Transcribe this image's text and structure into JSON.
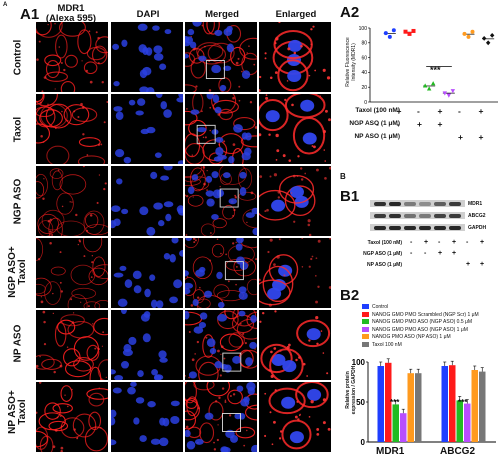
{
  "figure": {
    "corner_label": "A",
    "panel_a1": "A1",
    "panel_a2": "A2",
    "panel_b": "B",
    "panel_b1": "B1",
    "panel_b2": "B2",
    "columns": [
      "MDR1\n(Alexa 595)",
      "DAPI",
      "Merged",
      "Enlarged"
    ],
    "rows": [
      "Control",
      "Taxol",
      "NGP ASO",
      "NGP ASO+\nTaxol",
      "NP ASO",
      "NP ASO+\nTaxol"
    ]
  },
  "a2": {
    "ylabel": "Relative Fluorescence\nIntensity (MDR1)",
    "yticks": [
      "0",
      "20",
      "40",
      "60",
      "80",
      "100"
    ],
    "significance": "***",
    "conditions": [
      {
        "label": "Taxol (100 nM)",
        "marks": [
          "-",
          "+",
          "-",
          "+",
          "-",
          "+"
        ]
      },
      {
        "label": "NGP ASO (1 μM)",
        "marks": [
          "-",
          "-",
          "+",
          "+",
          "",
          ""
        ]
      },
      {
        "label": "NP ASO (1 μM)",
        "marks": [
          "",
          "",
          "",
          "",
          "+",
          "+"
        ]
      }
    ]
  },
  "b1": {
    "bands": [
      "MDR1",
      "ABCG2",
      "GAPDH"
    ],
    "conditions": [
      {
        "label": "Taxol (100 nM)",
        "marks": [
          "-",
          "+",
          "-",
          "+",
          "-",
          "+"
        ]
      },
      {
        "label": "NGP ASO (1 μM)",
        "marks": [
          "-",
          "-",
          "+",
          "+",
          "",
          ""
        ]
      },
      {
        "label": "NP ASO (1 μM)",
        "marks": [
          "",
          "",
          "",
          "",
          "+",
          "+"
        ]
      }
    ]
  },
  "b2": {
    "legend": [
      {
        "label": "Control",
        "color": "#1f3fff"
      },
      {
        "label": "NANOG GMO PMO Scrambled  (NGP Scr) 1 μM",
        "color": "#ff1a1a"
      },
      {
        "label": "NANOG GMO PMO ASO  (NGP ASO) 0.5 μM",
        "color": "#22bb22"
      },
      {
        "label": "NANOG GMO PMO ASO  (NGP ASO) 1 μM",
        "color": "#b84dff"
      },
      {
        "label": "NANOG PMO ASO  (NP ASO) 1 μM",
        "color": "#ff9a1f"
      },
      {
        "label": "Taxol 100 nM",
        "color": "#777777"
      }
    ],
    "ylabel": "Relative protein\nexpression / GAPDH",
    "yticks": [
      "0",
      "50",
      "100"
    ],
    "groups": [
      "MDR1",
      "ABCG2"
    ],
    "significance": "***"
  },
  "chart_data": [
    {
      "type": "scatter",
      "ylabel": "Relative Fluorescence Intensity (MDR1)",
      "ylim": [
        0,
        100
      ],
      "series": [
        {
          "values": [
            93,
            88,
            97
          ],
          "color": "#1f3fff"
        },
        {
          "values": [
            95,
            92,
            96
          ],
          "color": "#ff1a1a"
        },
        {
          "values": [
            22,
            18,
            25
          ],
          "color": "#22bb22"
        },
        {
          "values": [
            12,
            9,
            15
          ],
          "color": "#b84dff"
        },
        {
          "values": [
            92,
            88,
            95
          ],
          "color": "#ff9a1f"
        },
        {
          "values": [
            86,
            80,
            90
          ],
          "color": "#111111"
        }
      ]
    },
    {
      "type": "bar",
      "categories": [
        "MDR1",
        "ABCG2"
      ],
      "ylabel": "Relative protein expression / GAPDH",
      "ylim": [
        0,
        100
      ],
      "series": [
        {
          "name": "Control",
          "values": [
            95,
            95
          ]
        },
        {
          "name": "NANOG GMO PMO Scrambled  (NGP Scr) 1 μM",
          "values": [
            99,
            96
          ]
        },
        {
          "name": "NANOG GMO PMO ASO  (NGP ASO) 0.5 μM",
          "values": [
            47,
            52
          ]
        },
        {
          "name": "NANOG GMO PMO ASO  (NGP ASO) 1 μM",
          "values": [
            36,
            48
          ]
        },
        {
          "name": "NANOG PMO ASO  (NP ASO) 1 μM",
          "values": [
            86,
            90
          ]
        },
        {
          "name": "Taxol 100 nM",
          "values": [
            86,
            88
          ]
        }
      ]
    }
  ]
}
